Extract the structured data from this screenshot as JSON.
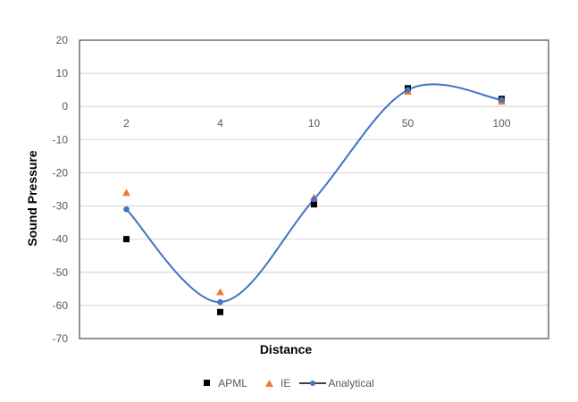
{
  "chart_data": {
    "type": "line",
    "title": "",
    "xlabel": "Distance",
    "ylabel": "Sound Pressure",
    "categories": [
      "2",
      "4",
      "10",
      "50",
      "100"
    ],
    "ylim": [
      -70,
      20
    ],
    "yticks": [
      20,
      10,
      0,
      -10,
      -20,
      -30,
      -40,
      -50,
      -60,
      -70
    ],
    "grid": true,
    "legend_position": "bottom",
    "series": [
      {
        "name": "APML",
        "marker": "square",
        "color": "#000000",
        "line": false,
        "values": [
          -40,
          -62,
          -29.5,
          5.5,
          2.3
        ]
      },
      {
        "name": "IE",
        "marker": "triangle",
        "color": "#ED7D31",
        "line": false,
        "values": [
          -26,
          -56,
          -27.5,
          4.5,
          1.5
        ]
      },
      {
        "name": "Analytical",
        "marker": "circle",
        "color": "#4472C4",
        "line": true,
        "smooth": true,
        "values": [
          -31,
          -59,
          -28,
          5,
          2
        ]
      }
    ]
  },
  "legend": {
    "items": [
      {
        "label": "APML"
      },
      {
        "label": "IE"
      },
      {
        "label": "Analytical"
      }
    ]
  },
  "axes": {
    "x_title": "Distance",
    "y_title": "Sound Pressure"
  }
}
